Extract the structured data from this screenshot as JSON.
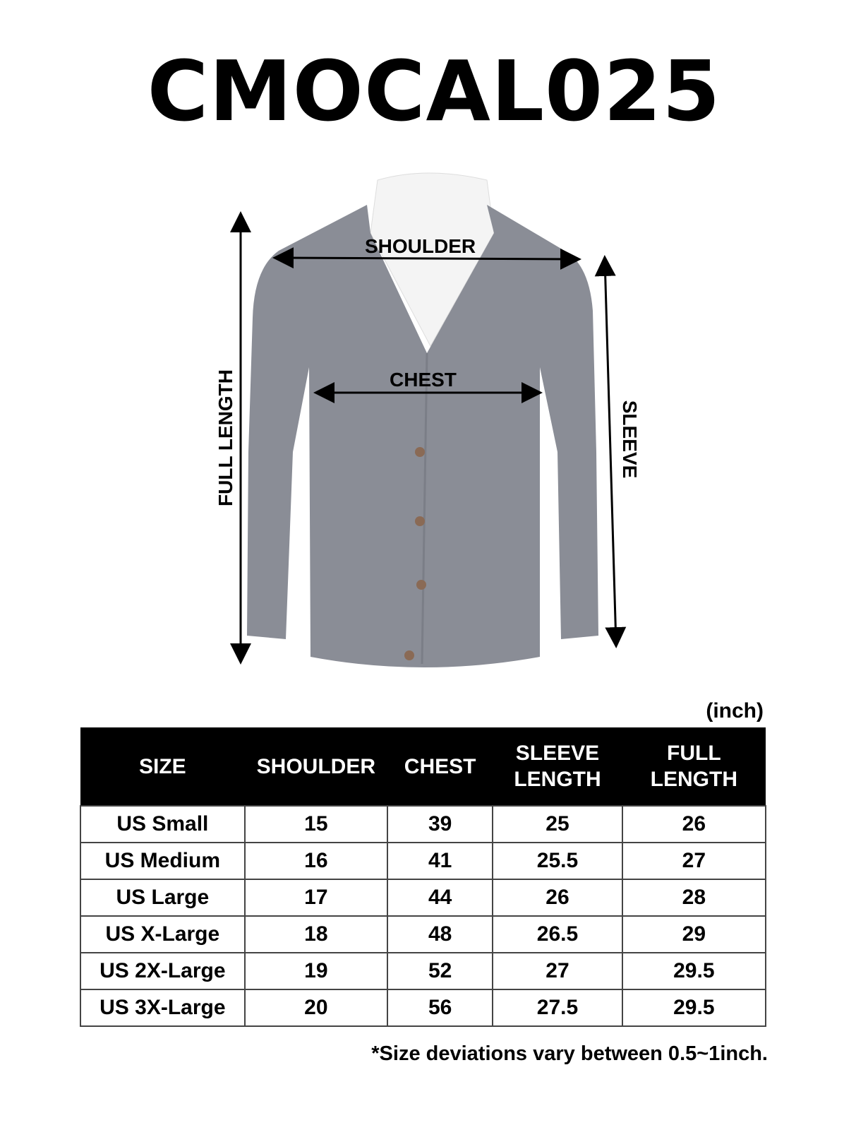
{
  "title": "CMOCAL025",
  "figure": {
    "garment_color": "#8a8d96",
    "labels": {
      "shoulder": "SHOULDER",
      "chest": "CHEST",
      "full_length": "FULL LENGTH",
      "sleeve": "SLEEVE"
    }
  },
  "unit": "(inch)",
  "table": {
    "headers": [
      "SIZE",
      "SHOULDER",
      "CHEST",
      "SLEEVE LENGTH",
      "FULL LENGTH"
    ],
    "rows": [
      [
        "US Small",
        "15",
        "39",
        "25",
        "26"
      ],
      [
        "US Medium",
        "16",
        "41",
        "25.5",
        "27"
      ],
      [
        "US Large",
        "17",
        "44",
        "26",
        "28"
      ],
      [
        "US X-Large",
        "18",
        "48",
        "26.5",
        "29"
      ],
      [
        "US 2X-Large",
        "19",
        "52",
        "27",
        "29.5"
      ],
      [
        "US 3X-Large",
        "20",
        "56",
        "27.5",
        "29.5"
      ]
    ]
  },
  "note": "*Size deviations vary between 0.5~1inch."
}
